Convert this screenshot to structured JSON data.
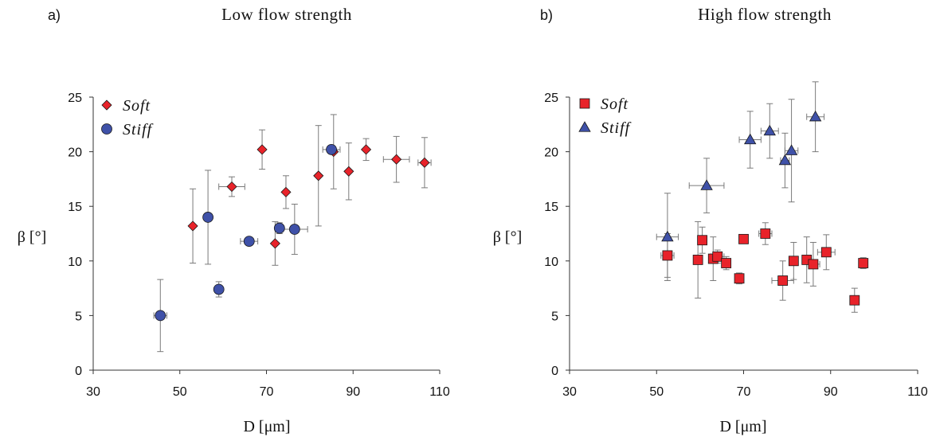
{
  "colors": {
    "soft": "#e8232a",
    "stiff": "#3f51a8",
    "axis": "#333333",
    "errorbar": "#7a7a7a"
  },
  "chart_data": [
    {
      "type": "scatter",
      "panel_label": "a)",
      "title": "Low flow strength",
      "xlabel": "D [μm]",
      "ylabel": "β [°]",
      "xlim": [
        30,
        110
      ],
      "ylim": [
        0,
        25
      ],
      "xticks": [
        30,
        50,
        70,
        90,
        110
      ],
      "yticks": [
        0,
        5,
        10,
        15,
        20,
        25
      ],
      "grid": false,
      "legend_position": "top-left",
      "series": [
        {
          "name": "Soft",
          "marker": "diamond",
          "color": "#e8232a",
          "points": [
            {
              "x": 53.0,
              "y": 13.2,
              "y_err": [
                3.4,
                3.4
              ],
              "x_err": [
                0,
                0
              ]
            },
            {
              "x": 62.0,
              "y": 16.8,
              "y_err": [
                0.9,
                0.9
              ],
              "x_err": [
                3.0,
                3.0
              ]
            },
            {
              "x": 69.0,
              "y": 20.2,
              "y_err": [
                1.8,
                1.8
              ],
              "x_err": [
                0,
                0
              ]
            },
            {
              "x": 72.0,
              "y": 11.6,
              "y_err": [
                2.0,
                2.0
              ],
              "x_err": [
                0,
                0
              ]
            },
            {
              "x": 74.5,
              "y": 16.3,
              "y_err": [
                1.5,
                1.5
              ],
              "x_err": [
                0,
                0
              ]
            },
            {
              "x": 82.0,
              "y": 17.8,
              "y_err": [
                4.6,
                4.6
              ],
              "x_err": [
                0,
                0
              ]
            },
            {
              "x": 85.5,
              "y": 20.0,
              "y_err": [
                3.4,
                3.4
              ],
              "x_err": [
                0,
                0
              ]
            },
            {
              "x": 89.0,
              "y": 18.2,
              "y_err": [
                2.6,
                2.6
              ],
              "x_err": [
                0,
                0
              ]
            },
            {
              "x": 93.0,
              "y": 20.2,
              "y_err": [
                1.0,
                1.0
              ],
              "x_err": [
                0,
                0
              ]
            },
            {
              "x": 100.0,
              "y": 19.3,
              "y_err": [
                2.1,
                2.1
              ],
              "x_err": [
                3.0,
                3.0
              ]
            },
            {
              "x": 106.5,
              "y": 19.0,
              "y_err": [
                2.3,
                2.3
              ],
              "x_err": [
                1.5,
                1.5
              ]
            }
          ]
        },
        {
          "name": "Stiff",
          "marker": "circle",
          "color": "#3f51a8",
          "points": [
            {
              "x": 45.5,
              "y": 5.0,
              "y_err": [
                3.3,
                3.3
              ],
              "x_err": [
                1.5,
                1.5
              ]
            },
            {
              "x": 56.5,
              "y": 14.0,
              "y_err": [
                4.3,
                4.3
              ],
              "x_err": [
                0,
                0
              ]
            },
            {
              "x": 59.0,
              "y": 7.4,
              "y_err": [
                0.7,
                0.7
              ],
              "x_err": [
                0,
                0
              ]
            },
            {
              "x": 66.0,
              "y": 11.8,
              "y_err": [
                0,
                0
              ],
              "x_err": [
                2.0,
                2.0
              ]
            },
            {
              "x": 73.0,
              "y": 13.0,
              "y_err": [
                0.5,
                0.5
              ],
              "x_err": [
                0,
                0
              ]
            },
            {
              "x": 76.5,
              "y": 12.9,
              "y_err": [
                2.3,
                2.3
              ],
              "x_err": [
                3.0,
                3.0
              ]
            },
            {
              "x": 85.0,
              "y": 20.2,
              "y_err": [
                0,
                0
              ],
              "x_err": [
                2.0,
                2.0
              ]
            }
          ]
        }
      ]
    },
    {
      "type": "scatter",
      "panel_label": "b)",
      "title": "High flow strength",
      "xlabel": "D [μm]",
      "ylabel": "β [°]",
      "xlim": [
        30,
        110
      ],
      "ylim": [
        0,
        25
      ],
      "xticks": [
        30,
        50,
        70,
        90,
        110
      ],
      "yticks": [
        0,
        5,
        10,
        15,
        20,
        25
      ],
      "grid": false,
      "legend_position": "top-left",
      "series": [
        {
          "name": "Soft",
          "marker": "square",
          "color": "#e8232a",
          "points": [
            {
              "x": 52.5,
              "y": 10.5,
              "y_err": [
                2.0,
                2.0
              ],
              "x_err": [
                1.5,
                1.5
              ]
            },
            {
              "x": 59.5,
              "y": 10.1,
              "y_err": [
                3.5,
                3.5
              ],
              "x_err": [
                0,
                0
              ]
            },
            {
              "x": 60.5,
              "y": 11.9,
              "y_err": [
                1.2,
                1.2
              ],
              "x_err": [
                1.0,
                1.0
              ]
            },
            {
              "x": 63.0,
              "y": 10.2,
              "y_err": [
                2.0,
                2.0
              ],
              "x_err": [
                1.0,
                1.0
              ]
            },
            {
              "x": 64.0,
              "y": 10.4,
              "y_err": [
                0.6,
                0.6
              ],
              "x_err": [
                1.5,
                1.5
              ]
            },
            {
              "x": 66.0,
              "y": 9.8,
              "y_err": [
                0.6,
                0.6
              ],
              "x_err": [
                1.0,
                1.0
              ]
            },
            {
              "x": 69.0,
              "y": 8.4,
              "y_err": [
                0.5,
                0.5
              ],
              "x_err": [
                0,
                0
              ]
            },
            {
              "x": 70.0,
              "y": 12.0,
              "y_err": [
                0,
                0
              ],
              "x_err": [
                0,
                0
              ]
            },
            {
              "x": 75.0,
              "y": 12.5,
              "y_err": [
                1.0,
                1.0
              ],
              "x_err": [
                1.5,
                1.5
              ]
            },
            {
              "x": 79.0,
              "y": 8.2,
              "y_err": [
                1.8,
                1.8
              ],
              "x_err": [
                2.5,
                2.5
              ]
            },
            {
              "x": 81.5,
              "y": 10.0,
              "y_err": [
                1.7,
                1.7
              ],
              "x_err": [
                0,
                0
              ]
            },
            {
              "x": 84.5,
              "y": 10.1,
              "y_err": [
                2.1,
                2.1
              ],
              "x_err": [
                0,
                0
              ]
            },
            {
              "x": 86.0,
              "y": 9.7,
              "y_err": [
                2.0,
                2.0
              ],
              "x_err": [
                1.5,
                1.5
              ]
            },
            {
              "x": 89.0,
              "y": 10.8,
              "y_err": [
                1.6,
                1.6
              ],
              "x_err": [
                2.0,
                2.0
              ]
            },
            {
              "x": 95.5,
              "y": 6.4,
              "y_err": [
                1.1,
                1.1
              ],
              "x_err": [
                0,
                0
              ]
            },
            {
              "x": 97.5,
              "y": 9.8,
              "y_err": [
                0.5,
                0.5
              ],
              "x_err": [
                0,
                0
              ]
            }
          ]
        },
        {
          "name": "Stiff",
          "marker": "triangle",
          "color": "#3f51a8",
          "points": [
            {
              "x": 52.5,
              "y": 12.2,
              "y_err": [
                4.0,
                4.0
              ],
              "x_err": [
                2.5,
                2.5
              ]
            },
            {
              "x": 61.5,
              "y": 16.9,
              "y_err": [
                2.5,
                2.5
              ],
              "x_err": [
                4.0,
                4.0
              ]
            },
            {
              "x": 71.5,
              "y": 21.1,
              "y_err": [
                2.6,
                2.6
              ],
              "x_err": [
                2.5,
                2.5
              ]
            },
            {
              "x": 76.0,
              "y": 21.9,
              "y_err": [
                2.5,
                2.5
              ],
              "x_err": [
                2.0,
                2.0
              ]
            },
            {
              "x": 79.5,
              "y": 19.2,
              "y_err": [
                2.5,
                2.5
              ],
              "x_err": [
                1.0,
                1.0
              ]
            },
            {
              "x": 81.0,
              "y": 20.1,
              "y_err": [
                4.7,
                4.7
              ],
              "x_err": [
                1.5,
                1.5
              ]
            },
            {
              "x": 86.5,
              "y": 23.2,
              "y_err": [
                3.2,
                3.2
              ],
              "x_err": [
                2.0,
                2.0
              ]
            }
          ]
        }
      ]
    }
  ]
}
